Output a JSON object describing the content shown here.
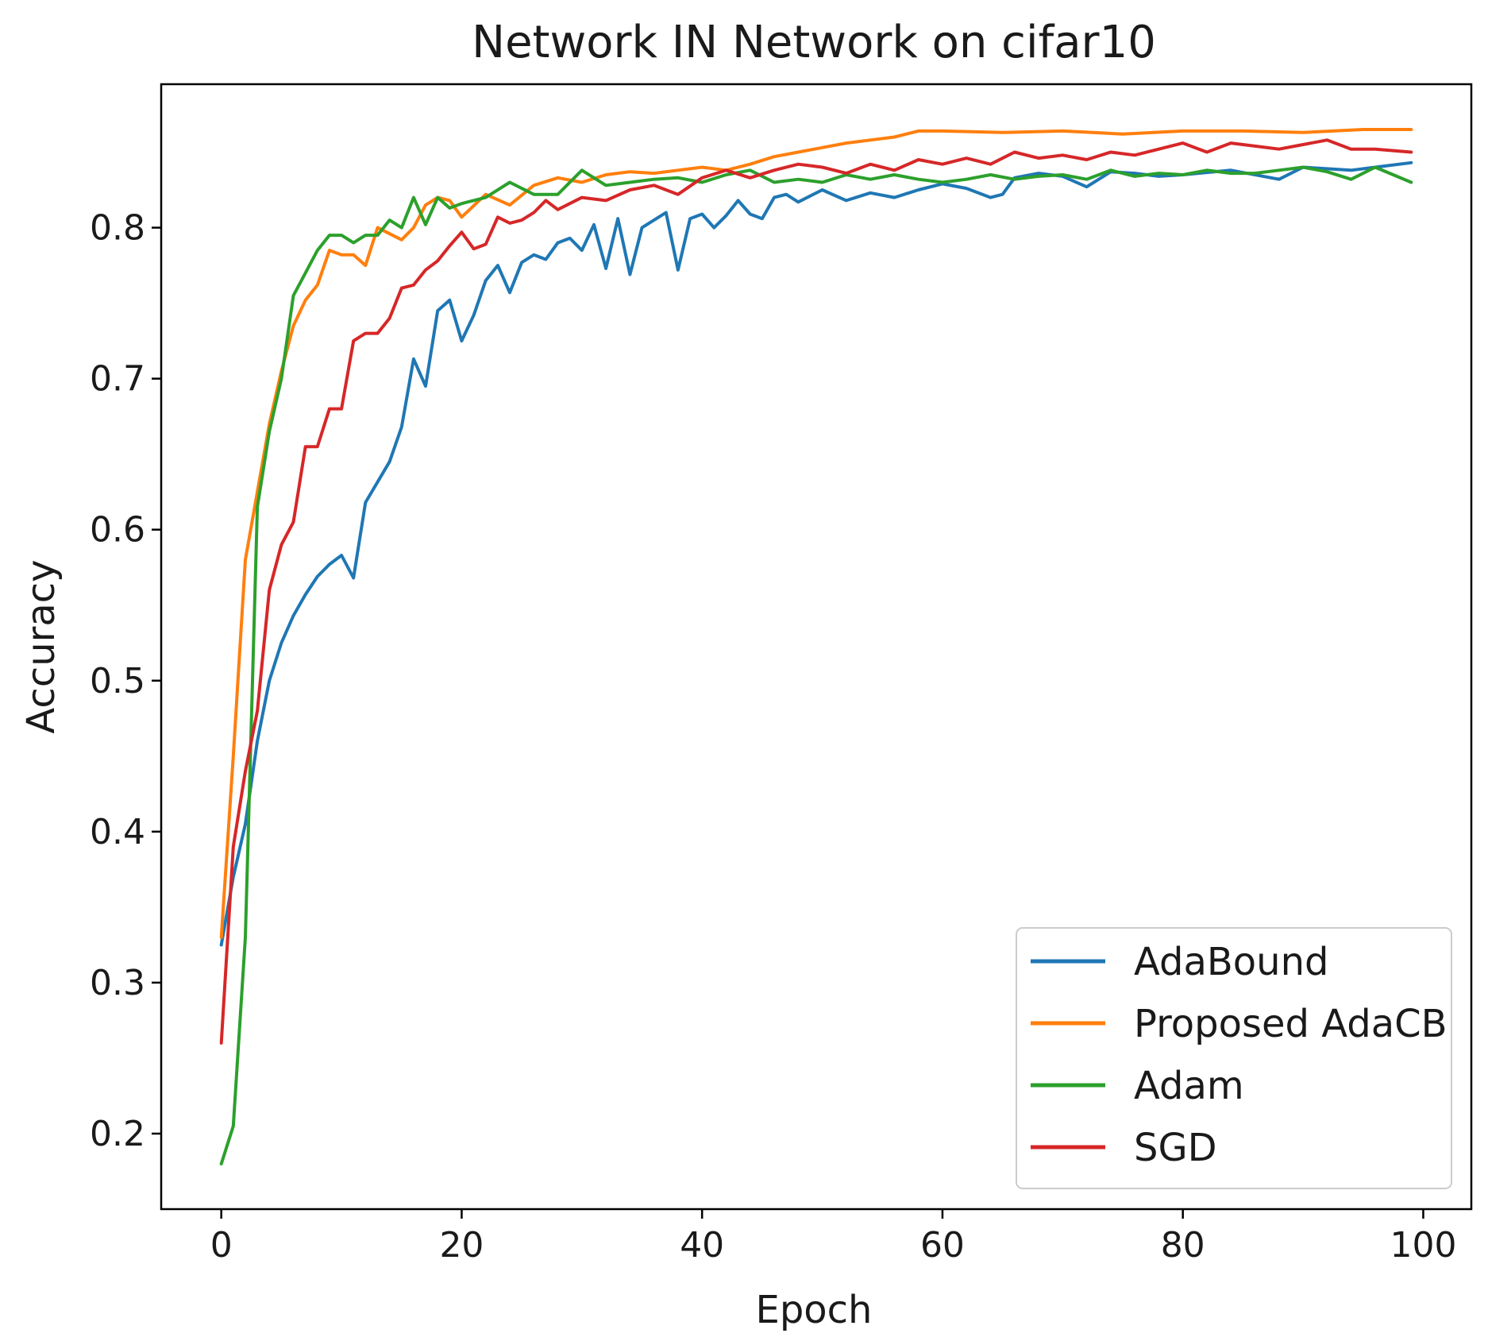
{
  "chart_data": {
    "type": "line",
    "title": "Network IN Network on cifar10",
    "xlabel": "Epoch",
    "ylabel": "Accuracy",
    "xlim": [
      -5,
      104
    ],
    "ylim": [
      0.15,
      0.895
    ],
    "xticks": [
      0,
      20,
      40,
      60,
      80,
      100
    ],
    "yticks": [
      0.2,
      0.3,
      0.4,
      0.5,
      0.6,
      0.7,
      0.8
    ],
    "xtick_labels": [
      "0",
      "20",
      "40",
      "60",
      "80",
      "100"
    ],
    "ytick_labels": [
      "0.2",
      "0.3",
      "0.4",
      "0.5",
      "0.6",
      "0.7",
      "0.8"
    ],
    "grid": false,
    "legend_position": "lower-right",
    "series": [
      {
        "name": "AdaBound",
        "color": "#1f77b4",
        "x": [
          0,
          1,
          2,
          3,
          4,
          5,
          6,
          7,
          8,
          9,
          10,
          11,
          12,
          14,
          15,
          16,
          17,
          18,
          19,
          20,
          21,
          22,
          23,
          24,
          25,
          26,
          27,
          28,
          29,
          30,
          31,
          32,
          33,
          34,
          35,
          36,
          37,
          38,
          39,
          40,
          41,
          42,
          43,
          44,
          45,
          46,
          47,
          48,
          50,
          52,
          54,
          56,
          58,
          60,
          62,
          64,
          65,
          66,
          68,
          70,
          72,
          74,
          76,
          78,
          80,
          84,
          88,
          90,
          94,
          96,
          99
        ],
        "y": [
          0.325,
          0.37,
          0.405,
          0.46,
          0.5,
          0.525,
          0.543,
          0.557,
          0.569,
          0.577,
          0.583,
          0.568,
          0.618,
          0.645,
          0.668,
          0.713,
          0.695,
          0.745,
          0.752,
          0.725,
          0.742,
          0.765,
          0.775,
          0.757,
          0.777,
          0.782,
          0.779,
          0.79,
          0.793,
          0.785,
          0.802,
          0.773,
          0.806,
          0.769,
          0.8,
          0.805,
          0.81,
          0.772,
          0.806,
          0.809,
          0.8,
          0.808,
          0.818,
          0.809,
          0.806,
          0.82,
          0.822,
          0.817,
          0.825,
          0.818,
          0.823,
          0.82,
          0.825,
          0.829,
          0.826,
          0.82,
          0.822,
          0.833,
          0.836,
          0.834,
          0.827,
          0.837,
          0.836,
          0.834,
          0.835,
          0.838,
          0.832,
          0.84,
          0.838,
          0.84,
          0.843
        ]
      },
      {
        "name": "Proposed AdaCB",
        "color": "#ff7f0e",
        "x": [
          0,
          1,
          2,
          3,
          4,
          5,
          6,
          7,
          8,
          9,
          10,
          11,
          12,
          13,
          15,
          16,
          17,
          18,
          19,
          20,
          22,
          24,
          26,
          28,
          30,
          32,
          34,
          36,
          38,
          40,
          42,
          44,
          46,
          48,
          50,
          52,
          54,
          56,
          58,
          60,
          65,
          70,
          75,
          80,
          85,
          90,
          95,
          99
        ],
        "y": [
          0.33,
          0.45,
          0.58,
          0.625,
          0.67,
          0.705,
          0.735,
          0.752,
          0.762,
          0.785,
          0.782,
          0.782,
          0.775,
          0.8,
          0.792,
          0.8,
          0.815,
          0.82,
          0.818,
          0.807,
          0.822,
          0.815,
          0.828,
          0.833,
          0.83,
          0.835,
          0.837,
          0.836,
          0.838,
          0.84,
          0.838,
          0.842,
          0.847,
          0.85,
          0.853,
          0.856,
          0.858,
          0.86,
          0.864,
          0.864,
          0.863,
          0.864,
          0.862,
          0.864,
          0.864,
          0.863,
          0.865,
          0.865
        ]
      },
      {
        "name": "Adam",
        "color": "#2ca02c",
        "x": [
          0,
          1,
          2,
          3,
          4,
          5,
          6,
          7,
          8,
          9,
          10,
          11,
          12,
          13,
          14,
          15,
          16,
          17,
          18,
          19,
          20,
          22,
          24,
          26,
          28,
          30,
          32,
          34,
          36,
          38,
          40,
          42,
          44,
          46,
          48,
          50,
          52,
          54,
          56,
          58,
          60,
          62,
          64,
          66,
          68,
          70,
          72,
          74,
          76,
          78,
          80,
          82,
          84,
          86,
          88,
          90,
          92,
          94,
          96,
          99
        ],
        "y": [
          0.18,
          0.205,
          0.33,
          0.615,
          0.665,
          0.7,
          0.755,
          0.77,
          0.785,
          0.795,
          0.795,
          0.79,
          0.795,
          0.795,
          0.805,
          0.8,
          0.82,
          0.802,
          0.82,
          0.813,
          0.816,
          0.82,
          0.83,
          0.822,
          0.822,
          0.838,
          0.828,
          0.83,
          0.832,
          0.833,
          0.83,
          0.835,
          0.838,
          0.83,
          0.832,
          0.83,
          0.835,
          0.832,
          0.835,
          0.832,
          0.83,
          0.832,
          0.835,
          0.832,
          0.834,
          0.835,
          0.832,
          0.838,
          0.834,
          0.836,
          0.835,
          0.838,
          0.836,
          0.836,
          0.838,
          0.84,
          0.837,
          0.832,
          0.84,
          0.83
        ]
      },
      {
        "name": "SGD",
        "color": "#d62728",
        "x": [
          0,
          1,
          2,
          3,
          4,
          5,
          6,
          7,
          8,
          9,
          10,
          11,
          12,
          13,
          14,
          15,
          16,
          17,
          18,
          19,
          20,
          21,
          22,
          23,
          24,
          25,
          26,
          27,
          28,
          30,
          32,
          34,
          36,
          38,
          40,
          42,
          44,
          46,
          48,
          50,
          52,
          54,
          56,
          58,
          60,
          62,
          64,
          66,
          68,
          70,
          72,
          74,
          76,
          78,
          80,
          82,
          84,
          86,
          88,
          90,
          92,
          94,
          96,
          99
        ],
        "y": [
          0.26,
          0.39,
          0.44,
          0.48,
          0.56,
          0.59,
          0.605,
          0.655,
          0.655,
          0.68,
          0.68,
          0.725,
          0.73,
          0.73,
          0.74,
          0.76,
          0.762,
          0.772,
          0.778,
          0.788,
          0.797,
          0.786,
          0.789,
          0.807,
          0.803,
          0.805,
          0.81,
          0.818,
          0.812,
          0.82,
          0.818,
          0.825,
          0.828,
          0.822,
          0.833,
          0.838,
          0.833,
          0.838,
          0.842,
          0.84,
          0.836,
          0.842,
          0.838,
          0.845,
          0.842,
          0.846,
          0.842,
          0.85,
          0.846,
          0.848,
          0.845,
          0.85,
          0.848,
          0.852,
          0.856,
          0.85,
          0.856,
          0.854,
          0.852,
          0.855,
          0.858,
          0.852,
          0.852,
          0.85
        ]
      }
    ]
  }
}
